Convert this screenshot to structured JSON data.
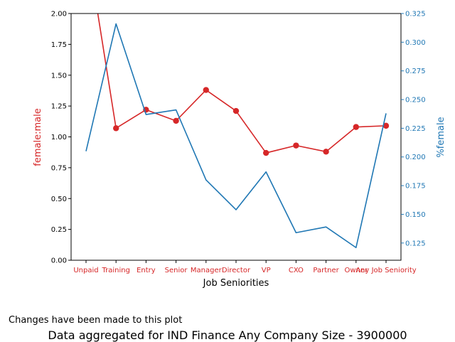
{
  "chart_data": {
    "type": "line",
    "categories": [
      "Unpaid",
      "Training",
      "Entry",
      "Senior",
      "Manager",
      "Director",
      "VP",
      "CXO",
      "Partner",
      "Owner",
      "Any Job Seniority"
    ],
    "xlabel": "Job Seniorities",
    "ylabel_left": "female:male",
    "ylabel_right": "%female",
    "ylim_left": [
      0,
      2.0
    ],
    "ylim_right": [
      0.11,
      0.325
    ],
    "yticks_left": [
      "0.00",
      "0.25",
      "0.50",
      "0.75",
      "1.00",
      "1.25",
      "1.50",
      "1.75",
      "2.00"
    ],
    "yticks_right": [
      "0.125",
      "0.150",
      "0.175",
      "0.200",
      "0.225",
      "0.250",
      "0.275",
      "0.300",
      "0.325"
    ],
    "series": [
      {
        "axis": "left",
        "color": "#d62728",
        "marker": "circle",
        "values": [
          2.6,
          1.07,
          1.22,
          1.13,
          1.38,
          1.21,
          0.87,
          0.93,
          0.88,
          1.08,
          1.09
        ]
      },
      {
        "axis": "right",
        "color": "#1f77b4",
        "marker": "none",
        "values": [
          0.205,
          0.316,
          0.237,
          0.241,
          0.18,
          0.154,
          0.187,
          0.134,
          0.139,
          0.121,
          0.238
        ]
      }
    ],
    "grid": false
  },
  "footer": {
    "note": "Changes have been made to this plot",
    "caption": "Data aggregated for IND Finance Any Company Size - 3900000"
  }
}
